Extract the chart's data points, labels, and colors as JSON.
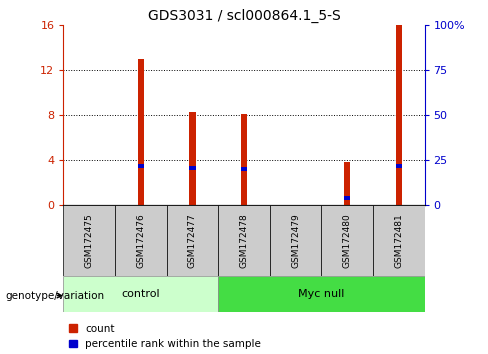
{
  "title": "GDS3031 / scl000864.1_5-S",
  "categories": [
    "GSM172475",
    "GSM172476",
    "GSM172477",
    "GSM172478",
    "GSM172479",
    "GSM172480",
    "GSM172481"
  ],
  "count_values": [
    0.0,
    13.0,
    8.3,
    8.1,
    0.0,
    3.8,
    16.0
  ],
  "percentile_values_left": [
    0.0,
    3.5,
    3.3,
    3.2,
    0.0,
    0.65,
    3.5
  ],
  "bar_color": "#cc2200",
  "percentile_color": "#0000cc",
  "ylim_left": [
    0,
    16
  ],
  "ylim_right": [
    0,
    100
  ],
  "yticks_left": [
    0,
    4,
    8,
    12,
    16
  ],
  "yticks_right": [
    0,
    25,
    50,
    75,
    100
  ],
  "ytick_labels_right": [
    "0",
    "25",
    "50",
    "75",
    "100%"
  ],
  "groups": [
    {
      "label": "control",
      "indices": [
        0,
        1,
        2
      ],
      "color": "#ccffcc"
    },
    {
      "label": "Myc null",
      "indices": [
        3,
        4,
        5,
        6
      ],
      "color": "#44dd44"
    }
  ],
  "group_label": "genotype/variation",
  "legend_count": "count",
  "legend_percentile": "percentile rank within the sample",
  "bar_width": 0.12,
  "background_color": "#ffffff"
}
